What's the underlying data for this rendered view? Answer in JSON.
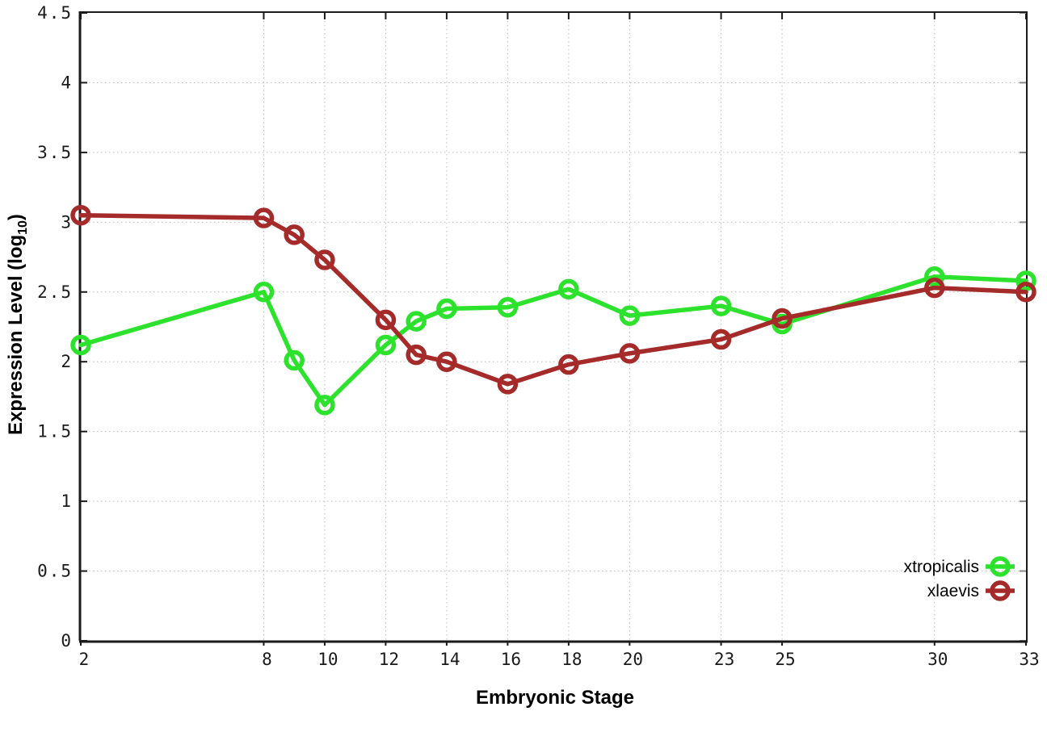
{
  "figure": {
    "background": "#ffffff",
    "border_color": "#1a1a1a",
    "grid_color": "#bdbdbd",
    "tick_label_color": "#1a1a1a"
  },
  "chart_data": {
    "type": "line",
    "title": "",
    "xlabel": "Embryonic Stage",
    "ylabel": "Expression Level (log10)",
    "ylabel_parts": {
      "main": "Expression Level (log",
      "sub": "10",
      "end": ")"
    },
    "x": [
      2,
      8,
      9,
      10,
      12,
      13,
      14,
      16,
      18,
      20,
      23,
      25,
      30,
      33
    ],
    "xticks": [
      2,
      8,
      10,
      12,
      14,
      16,
      18,
      20,
      23,
      25,
      30,
      33
    ],
    "yticks": [
      0,
      0.5,
      1,
      1.5,
      2,
      2.5,
      3,
      3.5,
      4,
      4.5
    ],
    "xlim": [
      2,
      33
    ],
    "ylim": [
      0,
      4.5
    ],
    "grid": true,
    "legend_position": "inside-right",
    "series": [
      {
        "name": "xtropicalis",
        "color": "#2de22d",
        "values": [
          2.12,
          2.5,
          2.01,
          1.69,
          2.12,
          2.29,
          2.38,
          2.39,
          2.52,
          2.33,
          2.4,
          2.27,
          2.61,
          2.58
        ]
      },
      {
        "name": "xlaevis",
        "color": "#a52a2a",
        "values": [
          3.05,
          3.03,
          2.91,
          2.73,
          2.3,
          2.05,
          2.0,
          1.84,
          1.98,
          2.06,
          2.16,
          2.31,
          2.53,
          2.5
        ]
      }
    ]
  }
}
